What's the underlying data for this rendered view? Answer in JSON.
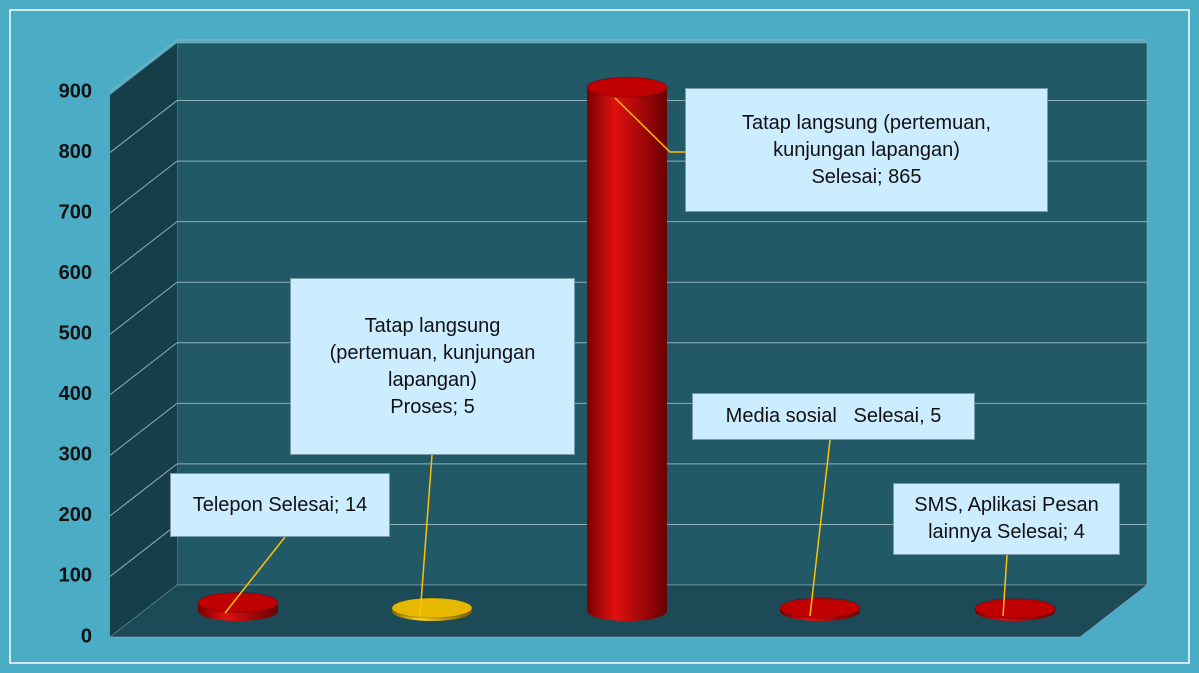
{
  "chart_data": {
    "type": "bar3d",
    "values": [
      14,
      5,
      865,
      5,
      4
    ],
    "value_labels": [
      "Telepon Selesai; 14",
      "Tatap langsung\n(pertemuan, kunjungan\nlapangan)\nProses; 5",
      "Tatap langsung (pertemuan,\nkunjungan lapangan)\nSelesai; 865",
      "Media sosial   Selesai, 5",
      "SMS, Aplikasi Pesan\nlainnya Selesai; 4"
    ],
    "colors": [
      "#c00000",
      "#e6b800",
      "#c00000",
      "#c00000",
      "#c00000"
    ],
    "ylim": [
      0,
      900
    ],
    "yticks": [
      0,
      100,
      200,
      300,
      400,
      500,
      600,
      700,
      800,
      900
    ],
    "grid": true
  }
}
